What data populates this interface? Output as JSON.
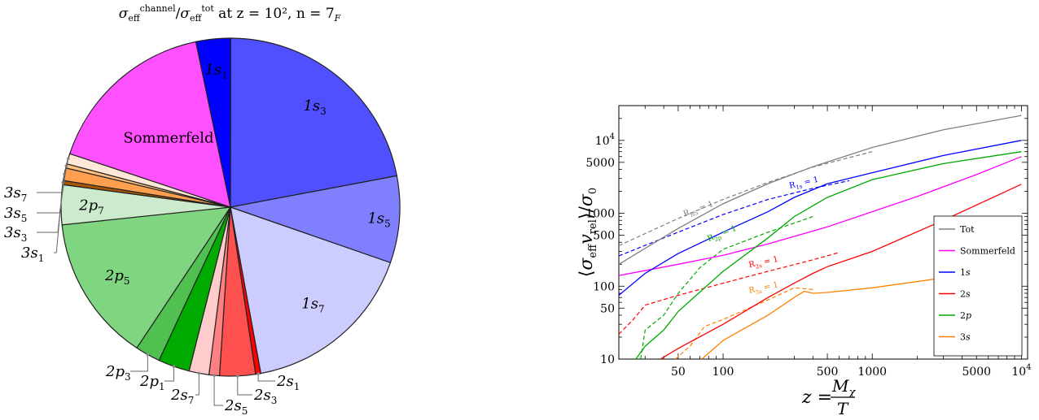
{
  "chart_data": [
    {
      "type": "pie",
      "title": "σ_eff^channel / σ_eff^tot at z = 10², n = 7_F",
      "title_parts": {
        "main": "σ",
        "sub1": "eff",
        "sup1": "channel",
        "sep": "/",
        "sub2": "eff",
        "sup2": "tot",
        "rest": " at z = 10², n = 7",
        "sub3": "F"
      },
      "slices": [
        {
          "label": "1s₃",
          "value": 22.0,
          "color": "#5050ff"
        },
        {
          "label": "1s₅",
          "value": 8.3,
          "color": "#8080ff"
        },
        {
          "label": "1s₇",
          "value": 16.8,
          "color": "#ccccff"
        },
        {
          "label": "2s₁",
          "value": 0.5,
          "color": "#ff0000"
        },
        {
          "label": "2s₃",
          "value": 3.4,
          "color": "#ff5050"
        },
        {
          "label": "2s₅",
          "value": 1.0,
          "color": "#ff8080"
        },
        {
          "label": "2s₇",
          "value": 1.9,
          "color": "#ffcccc"
        },
        {
          "label": "2p₁",
          "value": 3.0,
          "color": "#00aa00"
        },
        {
          "label": "2p₃",
          "value": 2.4,
          "color": "#50c050"
        },
        {
          "label": "2p₅",
          "value": 14.0,
          "color": "#80d580"
        },
        {
          "label": "2p₇",
          "value": 3.8,
          "color": "#cceacc"
        },
        {
          "label": "3s₁",
          "value": 0.4,
          "color": "#aa5500"
        },
        {
          "label": "3s₃",
          "value": 1.2,
          "color": "#ffa050"
        },
        {
          "label": "3s₅",
          "value": 0.4,
          "color": "#ffc080"
        },
        {
          "label": "3s₇",
          "value": 1.0,
          "color": "#ffe8d8"
        },
        {
          "label": "Sommerfeld",
          "value": 16.6,
          "color": "#ff50ff"
        },
        {
          "label": "1s₁",
          "value": 3.3,
          "color": "#0000ff"
        }
      ]
    },
    {
      "type": "line",
      "xlabel": "z = M_χ / T",
      "xlabel_parts": {
        "left": "z = ",
        "num": "M",
        "num_sub": "χ",
        "den": "T"
      },
      "ylabel": "⟨σ_eff v_rel⟩ / σ₀",
      "xscale": "log",
      "yscale": "log",
      "xlim": [
        20,
        11000
      ],
      "ylim": [
        10,
        30000
      ],
      "xticks": [
        50,
        100,
        500,
        1000,
        5000,
        10000
      ],
      "xticklabels": [
        "50",
        "100",
        "500",
        "1000",
        "5000",
        "10⁴"
      ],
      "yticks": [
        10,
        50,
        100,
        500,
        1000,
        5000,
        10000
      ],
      "yticklabels": [
        "10",
        "50",
        "100",
        "500",
        "1000",
        "5000",
        "10⁴"
      ],
      "legend_position": "lower-right",
      "series": [
        {
          "name": "Tot",
          "color": "#808080",
          "style": "solid",
          "points": [
            [
              20,
              200
            ],
            [
              30,
              330
            ],
            [
              50,
              620
            ],
            [
              100,
              1350
            ],
            [
              200,
              2550
            ],
            [
              400,
              4350
            ],
            [
              1000,
              8000
            ],
            [
              3000,
              14000
            ],
            [
              10000,
              22000
            ]
          ]
        },
        {
          "name": "Sommerfeld",
          "color": "#ff00ff",
          "style": "solid",
          "points": [
            [
              20,
              140
            ],
            [
              50,
              200
            ],
            [
              100,
              265
            ],
            [
              200,
              380
            ],
            [
              500,
              650
            ],
            [
              1000,
              1050
            ],
            [
              2000,
              1700
            ],
            [
              5000,
              3400
            ],
            [
              10000,
              6000
            ]
          ]
        },
        {
          "name": "1s",
          "color": "#0000ff",
          "style": "solid",
          "points": [
            [
              20,
              75
            ],
            [
              30,
              150
            ],
            [
              50,
              280
            ],
            [
              100,
              550
            ],
            [
              200,
              1050
            ],
            [
              300,
              1650
            ],
            [
              500,
              2550
            ],
            [
              1000,
              3600
            ],
            [
              3000,
              6200
            ],
            [
              10000,
              10000
            ]
          ]
        },
        {
          "name": "2s",
          "color": "#ff0000",
          "style": "solid",
          "points": [
            [
              38,
              10
            ],
            [
              50,
              14
            ],
            [
              100,
              30
            ],
            [
              200,
              70
            ],
            [
              300,
              110
            ],
            [
              400,
              150
            ],
            [
              500,
              185
            ],
            [
              1000,
              300
            ],
            [
              3000,
              800
            ],
            [
              10000,
              2500
            ]
          ]
        },
        {
          "name": "2p",
          "color": "#00aa00",
          "style": "solid",
          "points": [
            [
              26,
              10
            ],
            [
              30,
              15
            ],
            [
              40,
              25
            ],
            [
              50,
              45
            ],
            [
              100,
              160
            ],
            [
              200,
              460
            ],
            [
              300,
              900
            ],
            [
              500,
              1650
            ],
            [
              1000,
              2900
            ],
            [
              3000,
              4800
            ],
            [
              10000,
              7000
            ]
          ]
        },
        {
          "name": "3s",
          "color": "#ff8000",
          "style": "solid",
          "points": [
            [
              72,
              10
            ],
            [
              100,
              18
            ],
            [
              200,
              40
            ],
            [
              300,
              70
            ],
            [
              350,
              85
            ],
            [
              400,
              80
            ],
            [
              500,
              82
            ],
            [
              1000,
              95
            ],
            [
              3000,
              130
            ],
            [
              10000,
              200
            ]
          ]
        }
      ],
      "dashed_series": [
        {
          "name": "R_BS = 1",
          "color": "#808080",
          "points": [
            [
              20,
              360
            ],
            [
              50,
              850
            ],
            [
              100,
              1550
            ],
            [
              200,
              2650
            ],
            [
              400,
              4300
            ],
            [
              700,
              5800
            ],
            [
              1000,
              7000
            ]
          ]
        },
        {
          "name": "R_1s = 1",
          "color": "#0000ff",
          "points": [
            [
              20,
              260
            ],
            [
              50,
              550
            ],
            [
              100,
              960
            ],
            [
              200,
              1550
            ],
            [
              400,
              2200
            ],
            [
              700,
              2800
            ]
          ]
        },
        {
          "name": "R_2p = 1",
          "color": "#00aa00",
          "points": [
            [
              28,
              10
            ],
            [
              30,
              25
            ],
            [
              40,
              40
            ],
            [
              50,
              80
            ],
            [
              70,
              180
            ],
            [
              100,
              320
            ],
            [
              200,
              550
            ],
            [
              400,
              900
            ]
          ]
        },
        {
          "name": "R_2s = 1",
          "color": "#ff0000",
          "points": [
            [
              20,
              22
            ],
            [
              25,
              35
            ],
            [
              30,
              55
            ],
            [
              50,
              75
            ],
            [
              100,
              110
            ],
            [
              200,
              160
            ],
            [
              400,
              230
            ],
            [
              600,
              290
            ]
          ]
        },
        {
          "name": "R_3s = 1",
          "color": "#ff8000",
          "points": [
            [
              48,
              10
            ],
            [
              60,
              15
            ],
            [
              75,
              28
            ],
            [
              100,
              35
            ],
            [
              200,
              65
            ],
            [
              300,
              95
            ],
            [
              400,
              90
            ]
          ]
        }
      ],
      "annotations": [
        {
          "text": "R_BS = 1",
          "x": 55,
          "y": 900,
          "color": "#808080",
          "angle": -20
        },
        {
          "text": "R_1s = 1",
          "x": 280,
          "y": 2200,
          "color": "#0000ff",
          "angle": -13
        },
        {
          "text": "R_2p = 1",
          "x": 80,
          "y": 410,
          "color": "#00aa00",
          "angle": -22
        },
        {
          "text": "R_2s = 1",
          "x": 150,
          "y": 180,
          "color": "#ff0000",
          "angle": -12
        },
        {
          "text": "R_3s = 1",
          "x": 150,
          "y": 80,
          "color": "#ff8000",
          "angle": -12
        }
      ]
    }
  ]
}
